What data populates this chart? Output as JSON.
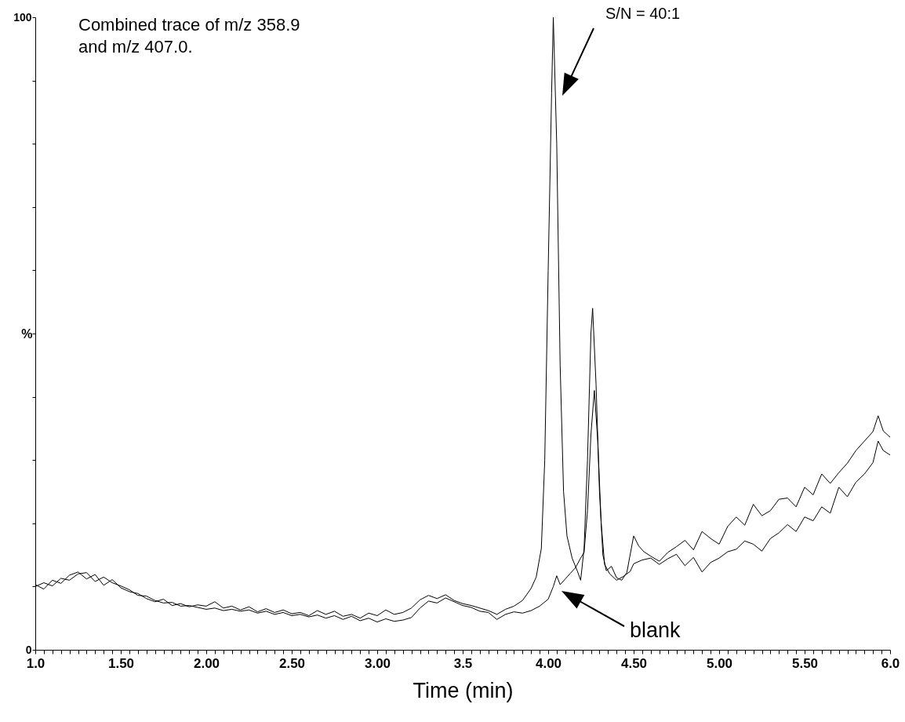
{
  "chart_data": {
    "type": "line",
    "xlabel": "Time (min)",
    "ylabel": "%",
    "xlim": [
      1.0,
      6.0
    ],
    "ylim": [
      0,
      100
    ],
    "xticks": [
      {
        "value": 1.0,
        "label": "1.0"
      },
      {
        "value": 1.05,
        "label": null
      },
      {
        "value": 1.1,
        "label": null
      },
      {
        "value": 1.15,
        "label": null
      },
      {
        "value": 1.2,
        "label": null
      },
      {
        "value": 1.25,
        "label": null
      },
      {
        "value": 1.3,
        "label": null
      },
      {
        "value": 1.35,
        "label": null
      },
      {
        "value": 1.4,
        "label": null
      },
      {
        "value": 1.45,
        "label": null
      },
      {
        "value": 1.5,
        "label": "1.50"
      },
      {
        "value": 1.55,
        "label": null
      },
      {
        "value": 1.6,
        "label": null
      },
      {
        "value": 1.65,
        "label": null
      },
      {
        "value": 1.7,
        "label": null
      },
      {
        "value": 1.75,
        "label": null
      },
      {
        "value": 1.8,
        "label": null
      },
      {
        "value": 1.85,
        "label": null
      },
      {
        "value": 1.9,
        "label": null
      },
      {
        "value": 1.95,
        "label": null
      },
      {
        "value": 2.0,
        "label": "2.00"
      },
      {
        "value": 2.05,
        "label": null
      },
      {
        "value": 2.1,
        "label": null
      },
      {
        "value": 2.15,
        "label": null
      },
      {
        "value": 2.2,
        "label": null
      },
      {
        "value": 2.25,
        "label": null
      },
      {
        "value": 2.3,
        "label": null
      },
      {
        "value": 2.35,
        "label": null
      },
      {
        "value": 2.4,
        "label": null
      },
      {
        "value": 2.45,
        "label": null
      },
      {
        "value": 2.5,
        "label": "2.50"
      },
      {
        "value": 2.55,
        "label": null
      },
      {
        "value": 2.6,
        "label": null
      },
      {
        "value": 2.65,
        "label": null
      },
      {
        "value": 2.7,
        "label": null
      },
      {
        "value": 2.75,
        "label": null
      },
      {
        "value": 2.8,
        "label": null
      },
      {
        "value": 2.85,
        "label": null
      },
      {
        "value": 2.9,
        "label": null
      },
      {
        "value": 2.95,
        "label": null
      },
      {
        "value": 3.0,
        "label": "3.00"
      },
      {
        "value": 3.05,
        "label": null
      },
      {
        "value": 3.1,
        "label": null
      },
      {
        "value": 3.15,
        "label": null
      },
      {
        "value": 3.2,
        "label": null
      },
      {
        "value": 3.25,
        "label": null
      },
      {
        "value": 3.3,
        "label": null
      },
      {
        "value": 3.35,
        "label": null
      },
      {
        "value": 3.4,
        "label": null
      },
      {
        "value": 3.45,
        "label": null
      },
      {
        "value": 3.5,
        "label": "3.5"
      },
      {
        "value": 3.55,
        "label": null
      },
      {
        "value": 3.6,
        "label": null
      },
      {
        "value": 3.65,
        "label": null
      },
      {
        "value": 3.7,
        "label": null
      },
      {
        "value": 3.75,
        "label": null
      },
      {
        "value": 3.8,
        "label": null
      },
      {
        "value": 3.85,
        "label": null
      },
      {
        "value": 3.9,
        "label": null
      },
      {
        "value": 3.95,
        "label": null
      },
      {
        "value": 4.0,
        "label": "4.00"
      },
      {
        "value": 4.05,
        "label": null
      },
      {
        "value": 4.1,
        "label": null
      },
      {
        "value": 4.15,
        "label": null
      },
      {
        "value": 4.2,
        "label": null
      },
      {
        "value": 4.25,
        "label": null
      },
      {
        "value": 4.3,
        "label": null
      },
      {
        "value": 4.35,
        "label": null
      },
      {
        "value": 4.4,
        "label": null
      },
      {
        "value": 4.45,
        "label": null
      },
      {
        "value": 4.5,
        "label": "4.50"
      },
      {
        "value": 4.55,
        "label": null
      },
      {
        "value": 4.6,
        "label": null
      },
      {
        "value": 4.65,
        "label": null
      },
      {
        "value": 4.7,
        "label": null
      },
      {
        "value": 4.75,
        "label": null
      },
      {
        "value": 4.8,
        "label": null
      },
      {
        "value": 4.85,
        "label": null
      },
      {
        "value": 4.9,
        "label": null
      },
      {
        "value": 4.95,
        "label": null
      },
      {
        "value": 5.0,
        "label": "5.00"
      },
      {
        "value": 5.05,
        "label": null
      },
      {
        "value": 5.1,
        "label": null
      },
      {
        "value": 5.15,
        "label": null
      },
      {
        "value": 5.2,
        "label": null
      },
      {
        "value": 5.25,
        "label": null
      },
      {
        "value": 5.3,
        "label": null
      },
      {
        "value": 5.35,
        "label": null
      },
      {
        "value": 5.4,
        "label": null
      },
      {
        "value": 5.45,
        "label": null
      },
      {
        "value": 5.5,
        "label": "5.50"
      },
      {
        "value": 5.55,
        "label": null
      },
      {
        "value": 5.6,
        "label": null
      },
      {
        "value": 5.65,
        "label": null
      },
      {
        "value": 5.7,
        "label": null
      },
      {
        "value": 5.75,
        "label": null
      },
      {
        "value": 5.8,
        "label": null
      },
      {
        "value": 5.85,
        "label": null
      },
      {
        "value": 5.9,
        "label": null
      },
      {
        "value": 5.95,
        "label": null
      },
      {
        "value": 6.0,
        "label": "6.0"
      }
    ],
    "yticks": [
      0,
      {
        "value": 10,
        "label": null
      },
      {
        "value": 20,
        "label": null
      },
      {
        "value": 30,
        "label": null
      },
      {
        "value": 40,
        "label": null
      },
      {
        "value": 50,
        "label": null
      },
      {
        "value": 60,
        "label": null
      },
      {
        "value": 70,
        "label": null
      },
      {
        "value": 80,
        "label": null
      },
      {
        "value": 90,
        "label": null
      },
      100
    ],
    "grid": false,
    "marker": "none",
    "line_style": "solid",
    "annotations": [
      "Combined trace of m/z 358.9\nand m/z 407.0.",
      "S/N = 40:1",
      "blank"
    ],
    "series": [
      {
        "color": "#000000",
        "x": [
          1.0,
          1.05,
          1.1,
          1.15,
          1.2,
          1.25,
          1.3,
          1.35,
          1.4,
          1.45,
          1.5,
          1.55,
          1.6,
          1.65,
          1.7,
          1.75,
          1.8,
          1.85,
          1.9,
          1.95,
          2.0,
          2.05,
          2.1,
          2.15,
          2.2,
          2.25,
          2.3,
          2.35,
          2.4,
          2.45,
          2.5,
          2.55,
          2.6,
          2.65,
          2.7,
          2.75,
          2.8,
          2.85,
          2.9,
          2.95,
          3.0,
          3.05,
          3.1,
          3.15,
          3.2,
          3.25,
          3.3,
          3.35,
          3.4,
          3.45,
          3.5,
          3.55,
          3.6,
          3.65,
          3.7,
          3.75,
          3.8,
          3.85,
          3.9,
          3.93,
          3.96,
          3.98,
          4.0,
          4.02,
          4.03,
          4.05,
          4.07,
          4.09,
          4.11,
          4.14,
          4.17,
          4.19,
          4.21,
          4.23,
          4.25,
          4.26,
          4.28,
          4.3,
          4.32,
          4.34,
          4.37,
          4.4,
          4.43,
          4.46,
          4.5,
          4.53,
          4.56,
          4.6,
          4.65,
          4.7,
          4.75,
          4.8,
          4.85,
          4.9,
          4.95,
          5.0,
          5.05,
          5.1,
          5.15,
          5.2,
          5.25,
          5.3,
          5.35,
          5.4,
          5.45,
          5.5,
          5.55,
          5.6,
          5.65,
          5.7,
          5.75,
          5.8,
          5.85,
          5.9,
          5.93,
          5.96,
          6.0
        ],
        "values": [
          10.3,
          9.6,
          11.0,
          10.5,
          11.8,
          12.3,
          11.2,
          11.9,
          10.2,
          11.1,
          9.8,
          9.2,
          8.9,
          8.1,
          7.6,
          8.0,
          7.0,
          7.3,
          6.8,
          7.1,
          6.9,
          7.6,
          6.6,
          6.9,
          6.3,
          6.8,
          6.0,
          6.5,
          5.9,
          6.3,
          5.7,
          5.9,
          5.4,
          6.2,
          5.6,
          6.1,
          5.3,
          5.6,
          5.0,
          5.8,
          5.4,
          6.3,
          5.6,
          5.9,
          6.6,
          7.9,
          8.6,
          8.1,
          8.7,
          7.8,
          7.3,
          7.0,
          6.6,
          6.2,
          5.6,
          6.4,
          6.9,
          7.8,
          9.7,
          11.5,
          16,
          30,
          60,
          88,
          100,
          80,
          45,
          25,
          18,
          14.5,
          12.5,
          11,
          16,
          30,
          50,
          54,
          42,
          25,
          15,
          12.5,
          13.2,
          11.4,
          11.0,
          12.2,
          18.0,
          16.4,
          15.5,
          14.8,
          14.0,
          15.4,
          16.3,
          17.3,
          15.8,
          18.7,
          17.6,
          16.7,
          19.5,
          21.0,
          19.7,
          23.0,
          21.2,
          22.0,
          23.8,
          24.0,
          22.6,
          25.7,
          24.5,
          27.8,
          26.3,
          28.0,
          29.5,
          31.5,
          33.0,
          34.5,
          37.0,
          34.6,
          33.6
        ]
      },
      {
        "color": "#000000",
        "x": [
          1.0,
          1.05,
          1.1,
          1.15,
          1.2,
          1.25,
          1.3,
          1.35,
          1.4,
          1.45,
          1.5,
          1.55,
          1.6,
          1.65,
          1.7,
          1.75,
          1.8,
          1.85,
          1.9,
          1.95,
          2.0,
          2.05,
          2.1,
          2.15,
          2.2,
          2.25,
          2.3,
          2.35,
          2.4,
          2.45,
          2.5,
          2.55,
          2.6,
          2.65,
          2.7,
          2.75,
          2.8,
          2.85,
          2.9,
          2.95,
          3.0,
          3.05,
          3.1,
          3.15,
          3.2,
          3.25,
          3.3,
          3.35,
          3.4,
          3.45,
          3.5,
          3.55,
          3.6,
          3.65,
          3.7,
          3.75,
          3.8,
          3.85,
          3.9,
          3.95,
          4.0,
          4.03,
          4.05,
          4.07,
          4.1,
          4.13,
          4.16,
          4.19,
          4.21,
          4.23,
          4.25,
          4.27,
          4.29,
          4.31,
          4.33,
          4.36,
          4.4,
          4.44,
          4.48,
          4.5,
          4.55,
          4.6,
          4.65,
          4.7,
          4.75,
          4.8,
          4.85,
          4.9,
          4.95,
          5.0,
          5.05,
          5.1,
          5.15,
          5.2,
          5.25,
          5.3,
          5.35,
          5.4,
          5.45,
          5.5,
          5.55,
          5.6,
          5.65,
          5.7,
          5.75,
          5.8,
          5.85,
          5.9,
          5.93,
          5.96,
          6.0
        ],
        "values": [
          10.0,
          10.6,
          10.1,
          11.3,
          11.0,
          12.0,
          12.2,
          10.8,
          11.5,
          10.6,
          10.1,
          9.5,
          8.6,
          8.5,
          7.8,
          7.4,
          7.5,
          6.9,
          7.0,
          6.7,
          6.4,
          6.6,
          6.2,
          6.4,
          6.1,
          6.3,
          5.8,
          6.1,
          5.6,
          5.9,
          5.4,
          5.6,
          5.2,
          5.5,
          5.0,
          5.4,
          4.8,
          5.3,
          4.6,
          5.0,
          4.4,
          4.9,
          4.5,
          4.7,
          5.1,
          6.6,
          7.7,
          7.4,
          8.2,
          7.6,
          7.0,
          6.7,
          6.1,
          5.9,
          4.8,
          5.6,
          6.0,
          5.8,
          6.2,
          6.9,
          8.0,
          10.0,
          11.7,
          10.3,
          11.2,
          12.1,
          13.0,
          14.5,
          15.4,
          22,
          34,
          41,
          33,
          20,
          13.5,
          12.0,
          11.0,
          11.6,
          12.4,
          13.6,
          14.2,
          14.5,
          13.5,
          14.4,
          15.1,
          13.3,
          14.6,
          12.3,
          13.8,
          14.5,
          15.5,
          15.9,
          17.2,
          16.7,
          15.6,
          17.6,
          18.5,
          19.8,
          18.7,
          21.0,
          20.4,
          22.6,
          21.6,
          25.7,
          24.2,
          26.5,
          27.8,
          29.6,
          33.0,
          31.5,
          30.8
        ]
      }
    ]
  }
}
